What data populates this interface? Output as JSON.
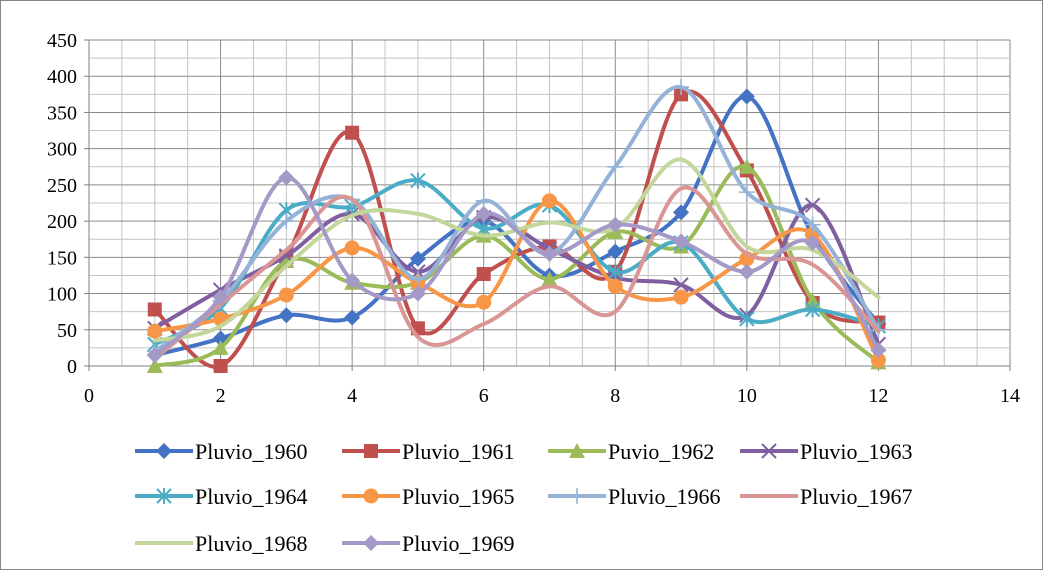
{
  "chart_data": {
    "type": "line",
    "smooth": true,
    "title": "",
    "xlabel": "",
    "ylabel": "",
    "xlim": [
      0,
      14
    ],
    "ylim": [
      0,
      450
    ],
    "xticks": [
      0,
      2,
      4,
      6,
      8,
      10,
      12,
      14
    ],
    "yticks": [
      0,
      50,
      100,
      150,
      200,
      250,
      300,
      350,
      400,
      450
    ],
    "grid": "major and minor gridlines",
    "legend_position": "bottom",
    "x": [
      1,
      2,
      3,
      4,
      5,
      6,
      7,
      8,
      9,
      10,
      11,
      12
    ],
    "series": [
      {
        "name": "Pluvio_1960",
        "color": "#4472C4",
        "marker": "diamond",
        "values": [
          15,
          38,
          70,
          67,
          148,
          200,
          125,
          158,
          212,
          372,
          180,
          58
        ]
      },
      {
        "name": "Pluvio_1961",
        "color": "#C0504D",
        "marker": "square",
        "values": [
          78,
          0,
          150,
          322,
          52,
          127,
          165,
          130,
          375,
          270,
          87,
          60
        ]
      },
      {
        "name": "Puvio_1962",
        "color": "#9BBB59",
        "marker": "triangle",
        "values": [
          0,
          25,
          145,
          115,
          115,
          180,
          120,
          185,
          165,
          275,
          90,
          5
        ]
      },
      {
        "name": "Pluvio_1963",
        "color": "#7F5FA0",
        "marker": "x",
        "values": [
          52,
          105,
          152,
          210,
          130,
          205,
          162,
          122,
          112,
          70,
          222,
          30
        ]
      },
      {
        "name": "Pluvio_1964",
        "color": "#4BACC6",
        "marker": "star",
        "values": [
          30,
          80,
          215,
          220,
          256,
          190,
          222,
          130,
          170,
          65,
          78,
          55
        ]
      },
      {
        "name": "Pluvio_1965",
        "color": "#F79646",
        "marker": "circle",
        "values": [
          48,
          65,
          98,
          163,
          115,
          88,
          228,
          110,
          95,
          148,
          182,
          8
        ]
      },
      {
        "name": "Pluvio_1966",
        "color": "#95B3D7",
        "marker": "plus",
        "values": [
          20,
          90,
          200,
          230,
          120,
          228,
          155,
          275,
          385,
          240,
          195,
          50
        ]
      },
      {
        "name": "Pluvio_1967",
        "color": "#D99694",
        "marker": "none",
        "values": [
          10,
          85,
          160,
          230,
          40,
          58,
          110,
          75,
          245,
          155,
          140,
          48
        ]
      },
      {
        "name": "Pluvio_1968",
        "color": "#C3D69B",
        "marker": "none",
        "values": [
          35,
          55,
          138,
          208,
          210,
          180,
          198,
          190,
          285,
          165,
          160,
          95
        ]
      },
      {
        "name": "Pluvio_1969",
        "color": "#A599C8",
        "marker": "diamond",
        "values": [
          15,
          95,
          260,
          118,
          100,
          210,
          155,
          195,
          172,
          130,
          170,
          22
        ]
      }
    ]
  }
}
